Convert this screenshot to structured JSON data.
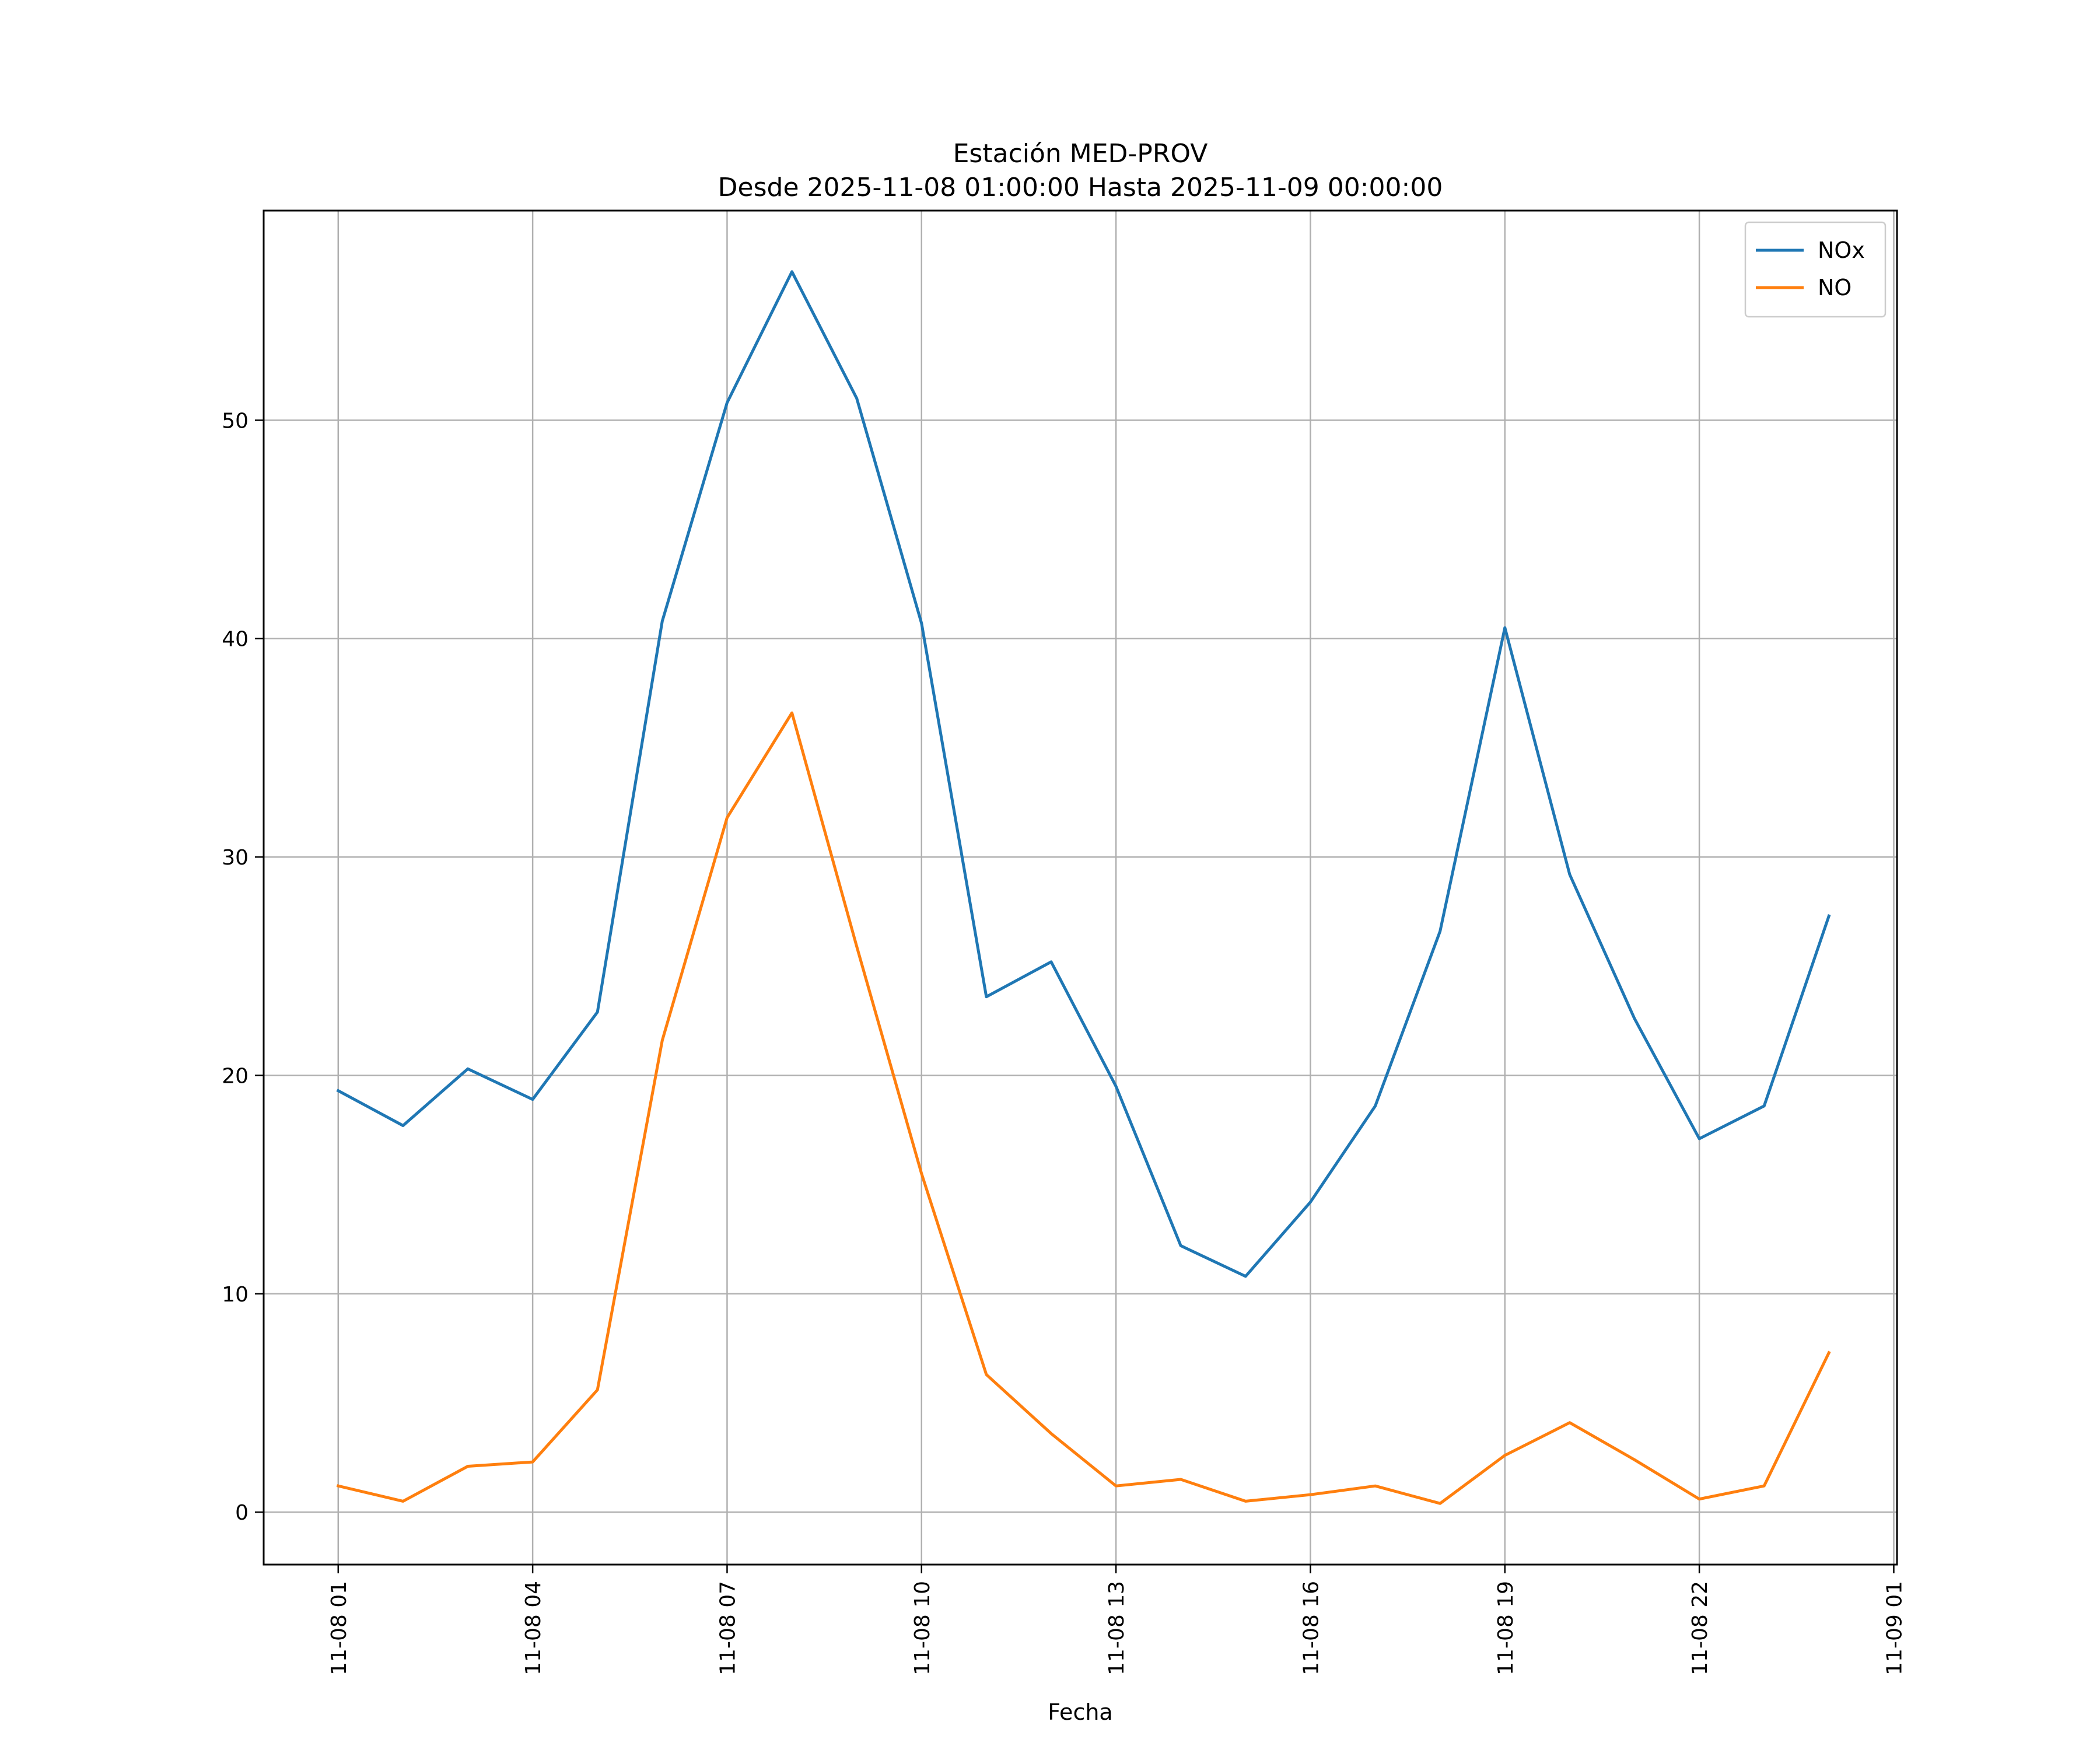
{
  "chart_data": {
    "type": "line",
    "title": "Estación MED-PROV",
    "subtitle": "Desde 2025-11-08 01:00:00 Hasta 2025-11-09 00:00:00",
    "xlabel": "Fecha",
    "ylabel": "",
    "x": [
      "2025-11-08 01:00",
      "2025-11-08 02:00",
      "2025-11-08 03:00",
      "2025-11-08 04:00",
      "2025-11-08 05:00",
      "2025-11-08 06:00",
      "2025-11-08 07:00",
      "2025-11-08 08:00",
      "2025-11-08 09:00",
      "2025-11-08 10:00",
      "2025-11-08 11:00",
      "2025-11-08 12:00",
      "2025-11-08 13:00",
      "2025-11-08 14:00",
      "2025-11-08 15:00",
      "2025-11-08 16:00",
      "2025-11-08 17:00",
      "2025-11-08 18:00",
      "2025-11-08 19:00",
      "2025-11-08 20:00",
      "2025-11-08 21:00",
      "2025-11-08 22:00",
      "2025-11-08 23:00",
      "2025-11-09 00:00"
    ],
    "series": [
      {
        "name": "NOx",
        "color": "#1f77b4",
        "values": [
          19.3,
          17.7,
          20.3,
          18.9,
          22.9,
          40.8,
          50.8,
          56.8,
          51.0,
          40.7,
          23.6,
          25.2,
          19.5,
          12.2,
          10.8,
          14.2,
          18.6,
          26.6,
          40.5,
          29.2,
          22.6,
          17.1,
          18.6,
          27.3
        ]
      },
      {
        "name": "NO",
        "color": "#ff7f0e",
        "values": [
          1.2,
          0.5,
          2.1,
          2.3,
          5.6,
          21.6,
          31.8,
          36.6,
          25.9,
          15.5,
          6.3,
          3.6,
          1.2,
          1.5,
          0.5,
          0.8,
          1.2,
          0.4,
          2.6,
          4.1,
          2.4,
          0.6,
          1.2,
          7.3
        ]
      }
    ],
    "xticks": [
      {
        "x": "2025-11-08 01:00",
        "label": "11-08 01"
      },
      {
        "x": "2025-11-08 04:00",
        "label": "11-08 04"
      },
      {
        "x": "2025-11-08 07:00",
        "label": "11-08 07"
      },
      {
        "x": "2025-11-08 10:00",
        "label": "11-08 10"
      },
      {
        "x": "2025-11-08 13:00",
        "label": "11-08 13"
      },
      {
        "x": "2025-11-08 16:00",
        "label": "11-08 16"
      },
      {
        "x": "2025-11-08 19:00",
        "label": "11-08 19"
      },
      {
        "x": "2025-11-08 22:00",
        "label": "11-08 22"
      },
      {
        "x": "2025-11-09 01:00",
        "label": "11-09 01"
      }
    ],
    "yticks": [
      0,
      10,
      20,
      30,
      40,
      50
    ],
    "xlim": [
      "2025-11-07 23:51",
      "2025-11-09 01:03"
    ],
    "ylim": [
      -2.4,
      59.6
    ],
    "grid": true,
    "legend_position": "top-right",
    "colors": {
      "grid": "#b0b0b0",
      "axes": "#000000"
    }
  }
}
